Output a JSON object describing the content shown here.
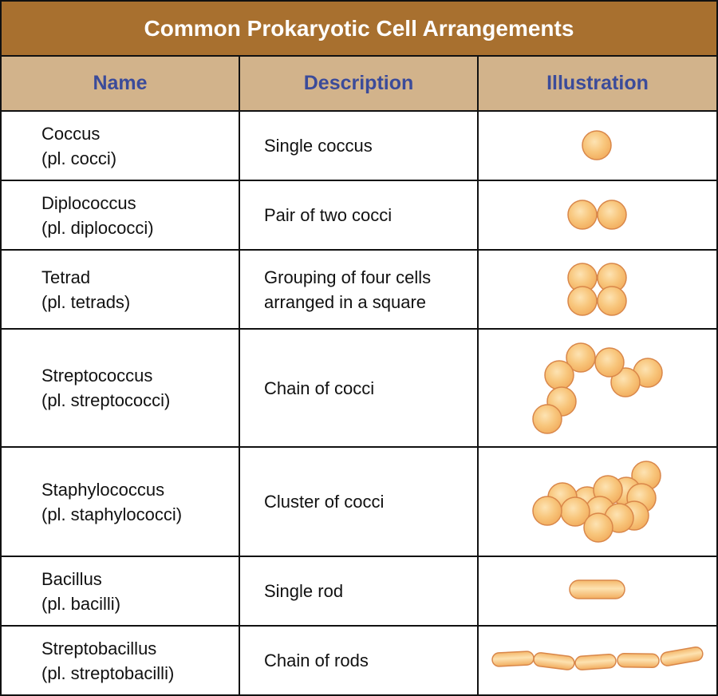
{
  "title": "Common Prokaryotic Cell Arrangements",
  "headers": {
    "name": "Name",
    "description": "Description",
    "illustration": "Illustration"
  },
  "colors": {
    "title_bg": "#a8702f",
    "header_bg": "#d2b38b",
    "header_text": "#3b4b9a",
    "cell_fill": "#f8c67c",
    "cell_stroke": "#d9874a"
  },
  "rows": [
    {
      "name": "Coccus",
      "plural": "(pl. cocci)",
      "description": [
        "Single coccus"
      ],
      "illustration": "single-coccus-icon"
    },
    {
      "name": "Diplococcus",
      "plural": "(pl. diplococci)",
      "description": [
        "Pair of two cocci"
      ],
      "illustration": "diplococcus-icon"
    },
    {
      "name": "Tetrad",
      "plural": "(pl. tetrads)",
      "description": [
        "Grouping of four cells",
        "arranged in a square"
      ],
      "illustration": "tetrad-icon"
    },
    {
      "name": "Streptococcus",
      "plural": "(pl. streptococci)",
      "description": [
        "Chain of cocci"
      ],
      "illustration": "streptococcus-icon"
    },
    {
      "name": "Staphylococcus",
      "plural": "(pl. staphylococci)",
      "description": [
        "Cluster of cocci"
      ],
      "illustration": "staphylococcus-icon"
    },
    {
      "name": "Bacillus",
      "plural": "(pl. bacilli)",
      "description": [
        "Single rod"
      ],
      "illustration": "bacillus-icon"
    },
    {
      "name": "Streptobacillus",
      "plural": "(pl. streptobacilli)",
      "description": [
        "Chain of rods"
      ],
      "illustration": "streptobacillus-icon"
    }
  ]
}
